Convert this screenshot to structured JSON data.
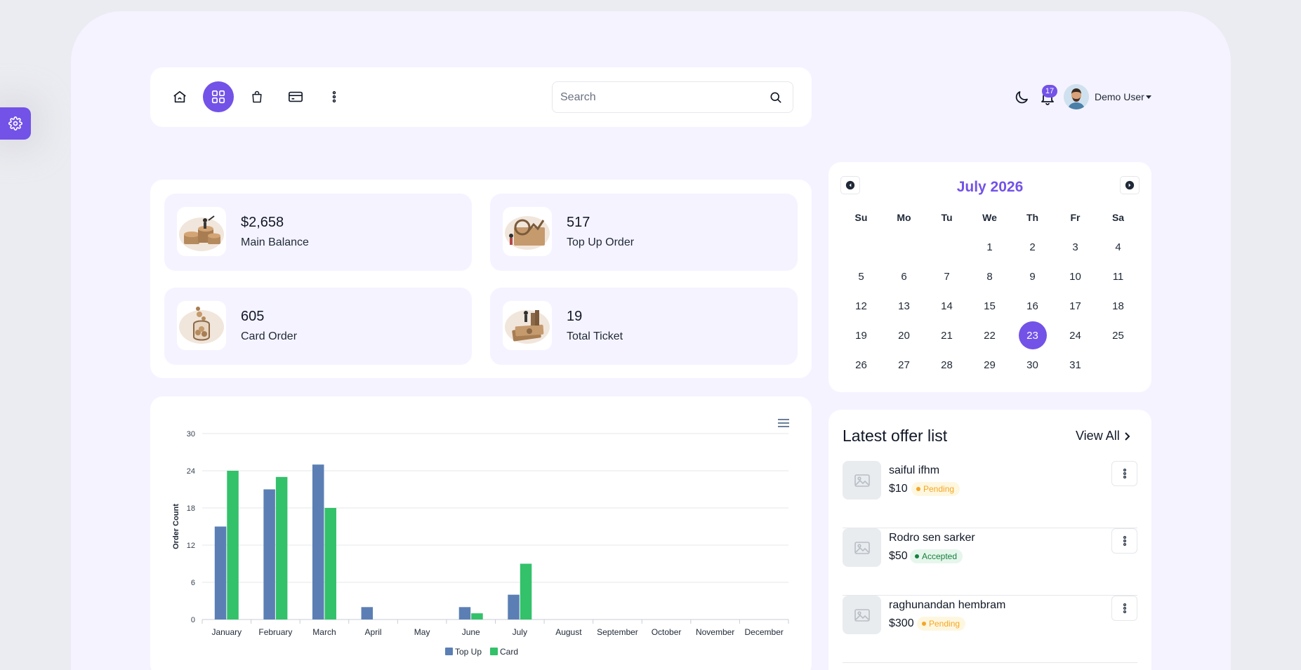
{
  "settings": {
    "icon": "gear-icon"
  },
  "toolbar": {
    "icons": [
      "home-icon",
      "grid-icon",
      "bag-icon",
      "card-icon",
      "more-vertical-icon"
    ],
    "search": {
      "placeholder": "Search",
      "value": ""
    }
  },
  "header": {
    "notification_count": "17",
    "user_name": "Demo User"
  },
  "stats": [
    {
      "value": "$2,658",
      "label": "Main Balance"
    },
    {
      "value": "517",
      "label": "Top Up Order"
    },
    {
      "value": "605",
      "label": "Card Order"
    },
    {
      "value": "19",
      "label": "Total Ticket"
    }
  ],
  "calendar": {
    "title": "July 2026",
    "weekdays": [
      "Su",
      "Mo",
      "Tu",
      "We",
      "Th",
      "Fr",
      "Sa"
    ],
    "weeks": [
      [
        "",
        "",
        "",
        "1",
        "2",
        "3",
        "4"
      ],
      [
        "5",
        "6",
        "7",
        "8",
        "9",
        "10",
        "11"
      ],
      [
        "12",
        "13",
        "14",
        "15",
        "16",
        "17",
        "18"
      ],
      [
        "19",
        "20",
        "21",
        "22",
        "23",
        "24",
        "25"
      ],
      [
        "26",
        "27",
        "28",
        "29",
        "30",
        "31",
        ""
      ]
    ],
    "selected": "23"
  },
  "offers": {
    "title": "Latest offer list",
    "view_all": "View All",
    "items": [
      {
        "name": "saiful ifhm",
        "price": "$10",
        "status": "Pending"
      },
      {
        "name": "Rodro sen sarker",
        "price": "$50",
        "status": "Accepted"
      },
      {
        "name": "raghunandan hembram",
        "price": "$300",
        "status": "Pending"
      }
    ]
  },
  "chart_data": {
    "type": "bar",
    "categories": [
      "January",
      "February",
      "March",
      "April",
      "May",
      "June",
      "July",
      "August",
      "September",
      "October",
      "November",
      "December"
    ],
    "series": [
      {
        "name": "Top Up",
        "values": [
          15,
          21,
          25,
          2,
          0,
          2,
          4,
          0,
          0,
          0,
          0,
          0
        ],
        "color": "#5b7fb4"
      },
      {
        "name": "Card",
        "values": [
          24,
          23,
          18,
          0,
          0,
          1,
          9,
          0,
          0,
          0,
          0,
          0
        ],
        "color": "#33c16a"
      }
    ],
    "ylabel": "Order Count",
    "ylim": [
      0,
      30
    ],
    "yticks": [
      0,
      6,
      12,
      18,
      24,
      30
    ],
    "grid": true,
    "legend": "bottom-center"
  }
}
